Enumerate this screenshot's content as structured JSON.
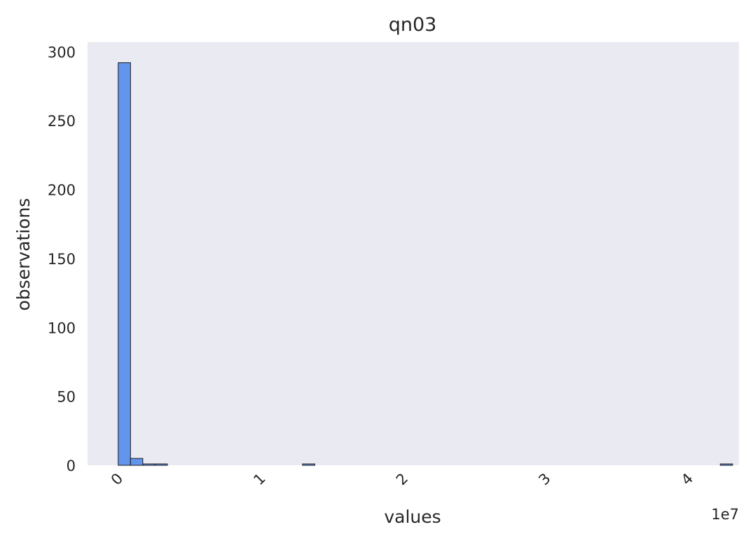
{
  "chart_data": {
    "type": "bar",
    "title": "qn03",
    "xlabel": "values",
    "ylabel": "observations",
    "x_offset_label": "1e7",
    "x_unit": 10000000,
    "xlim": [
      -0.215,
      4.355
    ],
    "ylim": [
      0,
      307
    ],
    "x_ticks": [
      0,
      1,
      2,
      3,
      4
    ],
    "x_tick_labels": [
      "0",
      "1",
      "2",
      "3",
      "4"
    ],
    "y_ticks": [
      0,
      50,
      100,
      150,
      200,
      250,
      300
    ],
    "y_tick_labels": [
      "0",
      "50",
      "100",
      "150",
      "200",
      "250",
      "300"
    ],
    "bin_edges_start": 0,
    "bin_width": 0.0862,
    "counts": [
      292,
      5,
      1,
      1,
      0,
      0,
      0,
      0,
      0,
      0,
      0,
      0,
      0,
      0,
      0,
      1,
      0,
      0,
      0,
      0,
      0,
      0,
      0,
      0,
      0,
      0,
      0,
      0,
      0,
      0,
      0,
      0,
      0,
      0,
      0,
      0,
      0,
      0,
      0,
      0,
      0,
      0,
      0,
      0,
      0,
      0,
      0,
      0,
      0,
      1
    ],
    "grid": false,
    "colors": {
      "bar": "#6495ed",
      "edge": "#1a1a1a",
      "plot_background": "#eaeaf2",
      "text": "#262626"
    }
  }
}
